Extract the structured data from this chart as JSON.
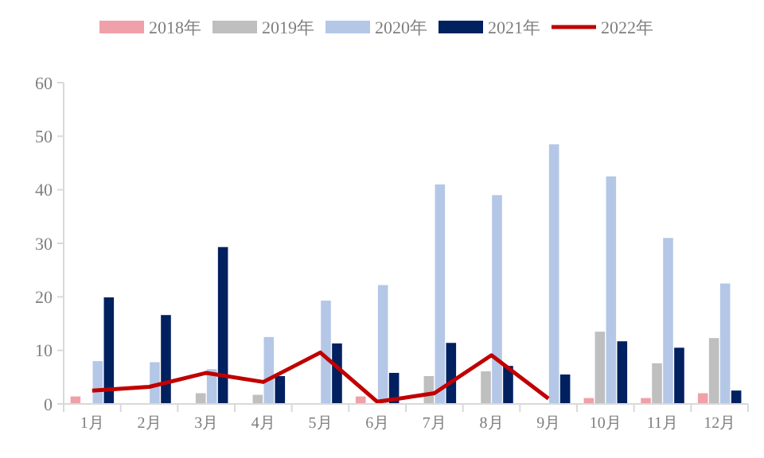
{
  "chart_data": {
    "type": "bar",
    "categories": [
      "1月",
      "2月",
      "3月",
      "4月",
      "5月",
      "6月",
      "7月",
      "8月",
      "9月",
      "10月",
      "11月",
      "12月"
    ],
    "series": [
      {
        "name": "2018年",
        "color": "#f0a0a8",
        "values": [
          1.4,
          0,
          0,
          0,
          0,
          1.4,
          null,
          0,
          null,
          1.1,
          1.1,
          2.0
        ]
      },
      {
        "name": "2019年",
        "color": "#bfbfbf",
        "values": [
          0,
          null,
          2.0,
          1.7,
          0,
          null,
          5.2,
          6.1,
          0,
          13.5,
          7.6,
          12.3
        ]
      },
      {
        "name": "2020年",
        "color": "#b4c7e7",
        "values": [
          8.0,
          7.8,
          6.5,
          12.5,
          19.3,
          22.2,
          41,
          39,
          48.5,
          42.5,
          31,
          22.5
        ]
      },
      {
        "name": "2021年",
        "color": "#002060",
        "values": [
          19.9,
          16.6,
          29.3,
          5.2,
          11.3,
          5.8,
          11.4,
          7.1,
          5.5,
          11.7,
          10.5,
          2.5
        ]
      },
      {
        "name": "2022年",
        "color": "#c00000",
        "type": "line",
        "values": [
          2.5,
          3.2,
          5.8,
          4.1,
          9.6,
          0.4,
          2.0,
          9.1,
          1.0,
          null,
          null,
          null
        ]
      }
    ],
    "ylim": [
      0,
      60
    ],
    "yticks": [
      0,
      10,
      20,
      30,
      40,
      50,
      60
    ],
    "grid": false,
    "legend": "top",
    "marker": "none"
  }
}
